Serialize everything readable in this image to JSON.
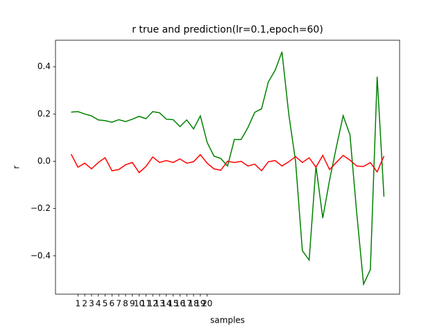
{
  "chart_data": {
    "type": "line",
    "title": "r true and prediction(lr=0.1,epoch=60)",
    "x_label": "samples",
    "y_label": "r",
    "x": [
      0,
      1,
      2,
      3,
      4,
      5,
      6,
      7,
      8,
      9,
      10,
      11,
      12,
      13,
      14,
      15,
      16,
      17,
      18,
      19,
      20,
      21,
      22,
      23,
      24,
      25,
      26,
      27,
      28,
      29,
      30,
      31,
      32,
      33,
      34,
      35,
      36,
      37,
      38,
      39,
      40,
      41,
      42,
      43,
      44,
      45,
      46
    ],
    "series": [
      {
        "color": "#008000",
        "values": [
          0.208,
          0.21,
          0.2,
          0.192,
          0.175,
          0.172,
          0.165,
          0.176,
          0.168,
          0.178,
          0.19,
          0.18,
          0.21,
          0.205,
          0.178,
          0.176,
          0.147,
          0.175,
          0.137,
          0.192,
          0.08,
          0.022,
          0.012,
          -0.02,
          0.092,
          0.092,
          0.143,
          0.207,
          0.222,
          0.336,
          0.385,
          0.463,
          0.2,
          0.0,
          -0.378,
          -0.418,
          -0.02,
          -0.24,
          -0.08,
          0.06,
          0.193,
          0.112,
          -0.22,
          -0.52,
          -0.458,
          0.358,
          -0.15
        ]
      },
      {
        "color": "#ff0000",
        "values": [
          0.03,
          -0.025,
          -0.008,
          -0.032,
          -0.005,
          0.015,
          -0.04,
          -0.035,
          -0.015,
          -0.005,
          -0.048,
          -0.022,
          0.018,
          -0.005,
          0.003,
          -0.005,
          0.01,
          -0.008,
          -0.002,
          0.028,
          -0.008,
          -0.032,
          -0.038,
          0.0,
          -0.005,
          0.0,
          -0.02,
          -0.012,
          -0.04,
          -0.002,
          0.003,
          -0.02,
          -0.002,
          0.02,
          -0.005,
          0.015,
          -0.025,
          0.025,
          -0.035,
          -0.005,
          0.025,
          0.005,
          -0.02,
          -0.022,
          -0.005,
          -0.045,
          0.022
        ]
      }
    ],
    "xlim": [
      -2.3,
      48.3
    ],
    "ylim": [
      -0.562,
      0.512
    ],
    "xticks": [
      1,
      2,
      3,
      4,
      5,
      6,
      7,
      8,
      9,
      10,
      11,
      12,
      13,
      14,
      15,
      16,
      17,
      18,
      19,
      20
    ],
    "yticks": [
      {
        "value": -0.4,
        "label": "−0.4"
      },
      {
        "value": -0.2,
        "label": "−0.2"
      },
      {
        "value": 0,
        "label": "0.0"
      },
      0.2,
      0.4
    ]
  }
}
